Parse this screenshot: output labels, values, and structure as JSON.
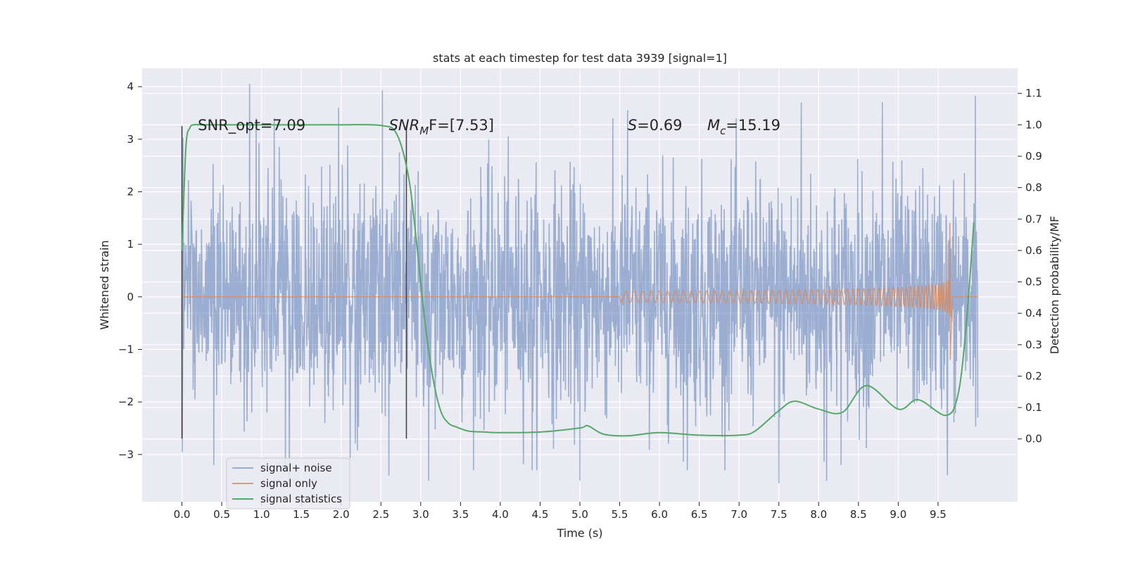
{
  "chart_data": {
    "type": "line",
    "title": "stats at each timestep for test data 3939 [signal=1]",
    "xlabel": "Time (s)",
    "ylabel": "Whitened strain",
    "ylabel_right": "Detection probability/MF",
    "xlim": [
      -0.5,
      10.5
    ],
    "ylim": [
      -3.9,
      4.35
    ],
    "ylim_right": [
      -0.2,
      1.18
    ],
    "x_ticks": [
      0.0,
      0.5,
      1.0,
      1.5,
      2.0,
      2.5,
      3.0,
      3.5,
      4.0,
      4.5,
      5.0,
      5.5,
      6.0,
      6.5,
      7.0,
      7.5,
      8.0,
      8.5,
      9.0,
      9.5
    ],
    "x_tick_labels": [
      "0.0",
      "0.5",
      "1.0",
      "1.5",
      "2.0",
      "2.5",
      "3.0",
      "3.5",
      "4.0",
      "4.5",
      "5.0",
      "5.5",
      "6.0",
      "6.5",
      "7.0",
      "7.5",
      "8.0",
      "8.5",
      "9.0",
      "9.5"
    ],
    "y_ticks": [
      -3,
      -2,
      -1,
      0,
      1,
      2,
      3,
      4
    ],
    "y_tick_labels": [
      "−3",
      "−2",
      "−1",
      "0",
      "1",
      "2",
      "3",
      "4"
    ],
    "y_right_ticks": [
      0.0,
      0.1,
      0.2,
      0.3,
      0.4,
      0.5,
      0.6,
      0.7,
      0.8,
      0.9,
      1.0,
      1.1
    ],
    "y_right_tick_labels": [
      "0.0",
      "0.1",
      "0.2",
      "0.3",
      "0.4",
      "0.5",
      "0.6",
      "0.7",
      "0.8",
      "0.9",
      "1.0",
      "1.1"
    ],
    "grid": true,
    "legend_position": "lower-left",
    "series": [
      {
        "name": "signal+ noise",
        "color": "#4c72b0",
        "opacity": 0.5,
        "x_range": [
          0.0,
          10.0
        ],
        "typical_band": [
          -1.5,
          1.5
        ],
        "peaks": [
          [
            0.85,
            4.05
          ],
          [
            2.52,
            3.93
          ],
          [
            9.97,
            3.83
          ],
          [
            8.8,
            3.7
          ],
          [
            1.97,
            3.6
          ],
          [
            7.78,
            3.7
          ],
          [
            1.35,
            -3.6
          ],
          [
            5.0,
            -3.5
          ],
          [
            3.1,
            -3.5
          ],
          [
            7.5,
            -3.55
          ],
          [
            8.1,
            -3.5
          ],
          [
            2.6,
            -3.4
          ],
          [
            9.62,
            -3.4
          ],
          [
            4.4,
            -3.3
          ],
          [
            0.4,
            -3.2
          ],
          [
            6.35,
            -3.3
          ],
          [
            5.6,
            3.55
          ]
        ]
      },
      {
        "name": "signal only",
        "color": "#dd8452",
        "x_range": [
          0.0,
          10.0
        ],
        "chirp_start": 5.5,
        "merger_time": 9.65,
        "peak_amplitude": 1.4,
        "min_amplitude": -1.35
      },
      {
        "name": "signal statistics",
        "color": "#55a868",
        "axis": "right",
        "x": [
          0.0,
          0.05,
          0.1,
          0.15,
          0.25,
          0.5,
          1.0,
          1.5,
          2.0,
          2.5,
          2.7,
          2.85,
          2.95,
          3.05,
          3.15,
          3.25,
          3.35,
          3.45,
          3.6,
          3.8,
          4.0,
          4.5,
          5.0,
          5.1,
          5.3,
          5.6,
          6.0,
          6.5,
          7.0,
          7.2,
          7.5,
          7.7,
          8.0,
          8.3,
          8.6,
          9.0,
          9.25,
          9.6,
          9.75,
          9.85,
          9.95
        ],
        "y": [
          0.6,
          0.93,
          0.99,
          1.0,
          1.0,
          1.0,
          1.0,
          1.0,
          1.0,
          0.998,
          0.97,
          0.83,
          0.62,
          0.38,
          0.2,
          0.09,
          0.05,
          0.038,
          0.025,
          0.022,
          0.02,
          0.022,
          0.035,
          0.042,
          0.015,
          0.01,
          0.02,
          0.012,
          0.012,
          0.025,
          0.09,
          0.12,
          0.095,
          0.085,
          0.17,
          0.095,
          0.125,
          0.075,
          0.14,
          0.35,
          0.69
        ]
      }
    ],
    "annotations": [
      {
        "text": "SNR_opt=7.09",
        "x": 0.2
      },
      {
        "prefix": "SNR",
        "sub": "M",
        "suffix": "F=[7.53]",
        "x": 2.6
      },
      {
        "prefix": "S",
        "suffix": "=0.69",
        "x": 5.6
      },
      {
        "prefix": "M",
        "sub": "c",
        "suffix": "=15.19",
        "x": 6.6
      }
    ],
    "vertical_lines": [
      {
        "x": 0.0,
        "y_range": [
          -2.7,
          3.25
        ]
      },
      {
        "x": 2.82,
        "y_range": [
          -2.7,
          3.25
        ]
      }
    ]
  }
}
